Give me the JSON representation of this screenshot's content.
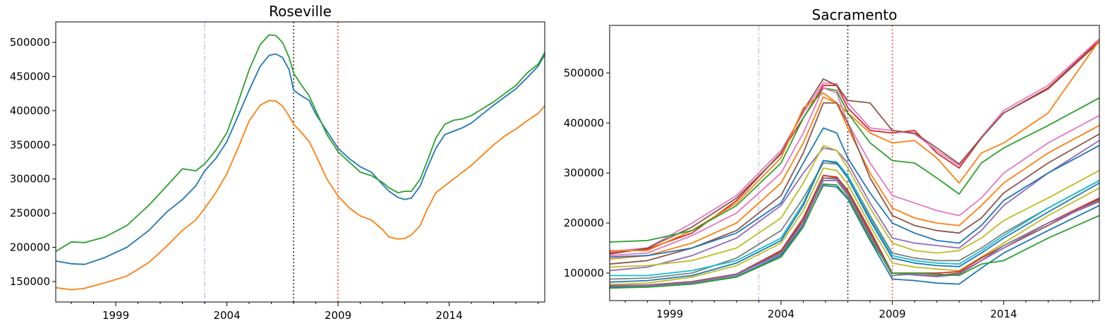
{
  "chart_data": [
    {
      "type": "line",
      "title": "Roseville",
      "xlabel": "",
      "ylabel": "",
      "xlim": [
        1996.3,
        2018.3
      ],
      "ylim": [
        120000,
        530000
      ],
      "x_ticks": [
        1999,
        2004,
        2009,
        2014
      ],
      "y_ticks": [
        150000,
        200000,
        250000,
        300000,
        350000,
        400000,
        450000,
        500000
      ],
      "grid": false,
      "vlines": [
        {
          "x": 2003.0,
          "color": "#c9c9f0",
          "style": "dashdot"
        },
        {
          "x": 2007.0,
          "color": "#333333",
          "style": "dotted"
        },
        {
          "x": 2009.0,
          "color": "#ff4a3d",
          "style": "dotted"
        }
      ],
      "series": [
        {
          "color": "#1f77b4",
          "x": [
            1996.3,
            1997,
            1997.6,
            1998.5,
            1999.5,
            2000.5,
            2001.3,
            2002,
            2002.6,
            2003,
            2003.5,
            2004,
            2004.5,
            2005,
            2005.5,
            2005.9,
            2006.2,
            2006.5,
            2006.8,
            2007,
            2007.3,
            2007.7,
            2008,
            2008.5,
            2009,
            2009.5,
            2010,
            2010.5,
            2011,
            2011.3,
            2011.7,
            2012,
            2012.3,
            2012.7,
            2013,
            2013.4,
            2013.8,
            2014.2,
            2014.6,
            2015,
            2015.5,
            2016,
            2016.5,
            2017,
            2017.5,
            2018,
            2018.3
          ],
          "y": [
            180000,
            176000,
            175000,
            185000,
            200000,
            225000,
            252000,
            270000,
            290000,
            312000,
            330000,
            355000,
            392000,
            430000,
            465000,
            481000,
            483000,
            478000,
            460000,
            430000,
            423000,
            415000,
            395000,
            370000,
            345000,
            330000,
            318000,
            310000,
            292000,
            282000,
            273000,
            270000,
            272000,
            290000,
            315000,
            345000,
            365000,
            370000,
            375000,
            382000,
            395000,
            408000,
            420000,
            432000,
            448000,
            465000,
            482000
          ]
        },
        {
          "color": "#ff7f0e",
          "x": [
            1996.3,
            1997,
            1997.6,
            1998.5,
            1999.5,
            2000.5,
            2001.3,
            2002,
            2002.6,
            2003,
            2003.5,
            2004,
            2004.5,
            2005,
            2005.5,
            2005.9,
            2006.2,
            2006.5,
            2006.8,
            2007,
            2007.3,
            2007.7,
            2008,
            2008.5,
            2009,
            2009.5,
            2010,
            2010.5,
            2011,
            2011.3,
            2011.7,
            2012,
            2012.3,
            2012.7,
            2013,
            2013.4,
            2013.8,
            2014.2,
            2014.6,
            2015,
            2015.5,
            2016,
            2016.5,
            2017,
            2017.5,
            2018,
            2018.3
          ],
          "y": [
            141000,
            138000,
            140000,
            148000,
            158000,
            178000,
            202000,
            225000,
            240000,
            257000,
            280000,
            308000,
            345000,
            385000,
            408000,
            415000,
            414000,
            407000,
            392000,
            380000,
            370000,
            355000,
            335000,
            300000,
            275000,
            258000,
            246000,
            240000,
            226000,
            215000,
            212000,
            213000,
            218000,
            232000,
            255000,
            280000,
            290000,
            300000,
            310000,
            320000,
            335000,
            350000,
            363000,
            373000,
            385000,
            396000,
            407000
          ]
        },
        {
          "color": "#2ca02c",
          "x": [
            1996.3,
            1997,
            1997.6,
            1998.5,
            1999.5,
            2000.5,
            2001.3,
            2002,
            2002.6,
            2003,
            2003.5,
            2004,
            2004.5,
            2005,
            2005.5,
            2005.9,
            2006.2,
            2006.5,
            2006.8,
            2007,
            2007.3,
            2007.7,
            2008,
            2008.5,
            2009,
            2009.5,
            2010,
            2010.5,
            2011,
            2011.3,
            2011.7,
            2012,
            2012.3,
            2012.7,
            2013,
            2013.4,
            2013.8,
            2014.2,
            2014.6,
            2015,
            2015.5,
            2016,
            2016.5,
            2017,
            2017.5,
            2018,
            2018.3
          ],
          "y": [
            194000,
            208000,
            207000,
            215000,
            232000,
            262000,
            290000,
            315000,
            312000,
            322000,
            342000,
            368000,
            412000,
            460000,
            497000,
            511000,
            510000,
            500000,
            478000,
            455000,
            440000,
            422000,
            400000,
            365000,
            340000,
            325000,
            310000,
            305000,
            295000,
            287000,
            280000,
            282000,
            282000,
            300000,
            325000,
            360000,
            380000,
            386000,
            388000,
            393000,
            403000,
            413000,
            425000,
            437000,
            455000,
            468000,
            485000
          ]
        }
      ]
    },
    {
      "type": "line",
      "title": "Sacramento",
      "xlabel": "",
      "ylabel": "",
      "xlim": [
        1996.3,
        2018.3
      ],
      "ylim": [
        45000,
        595000
      ],
      "x_ticks": [
        1999,
        2004,
        2009,
        2014
      ],
      "y_ticks": [
        100000,
        200000,
        300000,
        400000,
        500000
      ],
      "grid": false,
      "vlines": [
        {
          "x": 2003.0,
          "color": "#c9c9f0",
          "style": "dashdot"
        },
        {
          "x": 2007.0,
          "color": "#333333",
          "style": "dotted"
        },
        {
          "x": 2009.0,
          "color": "#ff4a3d",
          "style": "dotted"
        }
      ],
      "x": [
        1996.3,
        1998,
        2000,
        2002,
        2004,
        2005,
        2005.9,
        2006.5,
        2007,
        2008,
        2009,
        2010,
        2011,
        2012,
        2013,
        2014,
        2016,
        2018.3
      ],
      "series": [
        {
          "color": "#d62728",
          "y": [
            140000,
            148000,
            180000,
            245000,
            340000,
            410000,
            475000,
            475000,
            430000,
            385000,
            380000,
            385000,
            340000,
            310000,
            370000,
            420000,
            470000,
            565000
          ]
        },
        {
          "color": "#e377c2",
          "y": [
            143000,
            150000,
            200000,
            255000,
            345000,
            420000,
            480000,
            478000,
            440000,
            390000,
            385000,
            378000,
            345000,
            315000,
            372000,
            425000,
            475000,
            568000
          ]
        },
        {
          "color": "#8c564b",
          "y": [
            138000,
            150000,
            192000,
            250000,
            338000,
            425000,
            488000,
            475000,
            445000,
            440000,
            385000,
            380000,
            350000,
            318000,
            370000,
            420000,
            468000,
            562000
          ]
        },
        {
          "color": "#ff7f0e",
          "y": [
            145000,
            145000,
            185000,
            240000,
            330000,
            430000,
            460000,
            440000,
            420000,
            380000,
            360000,
            365000,
            330000,
            280000,
            340000,
            360000,
            420000,
            565000
          ]
        },
        {
          "color": "#2ca02c",
          "y": [
            162000,
            165000,
            185000,
            235000,
            320000,
            410000,
            470000,
            465000,
            420000,
            360000,
            325000,
            320000,
            290000,
            258000,
            320000,
            350000,
            395000,
            450000
          ]
        },
        {
          "color": "#e377c2",
          "y": [
            135000,
            140000,
            175000,
            220000,
            300000,
            380000,
            470000,
            460000,
            400000,
            320000,
            255000,
            240000,
            225000,
            215000,
            250000,
            300000,
            360000,
            415000
          ]
        },
        {
          "color": "#ff7f0e",
          "y": [
            128000,
            135000,
            160000,
            200000,
            280000,
            360000,
            452000,
            440000,
            390000,
            300000,
            230000,
            210000,
            200000,
            195000,
            235000,
            280000,
            340000,
            395000
          ]
        },
        {
          "color": "#8c564b",
          "y": [
            118000,
            125000,
            150000,
            185000,
            255000,
            340000,
            440000,
            440000,
            400000,
            290000,
            215000,
            195000,
            185000,
            180000,
            210000,
            260000,
            320000,
            378000
          ]
        },
        {
          "color": "#9467bd",
          "y": [
            105000,
            112000,
            135000,
            170000,
            235000,
            300000,
            350000,
            345000,
            320000,
            240000,
            170000,
            160000,
            155000,
            150000,
            185000,
            235000,
            300000,
            365000
          ]
        },
        {
          "color": "#1f77b4",
          "y": [
            132000,
            135000,
            150000,
            180000,
            240000,
            320000,
            390000,
            380000,
            330000,
            260000,
            200000,
            180000,
            165000,
            160000,
            195000,
            245000,
            300000,
            355000
          ]
        },
        {
          "color": "#bcbd22",
          "y": [
            112000,
            115000,
            125000,
            150000,
            210000,
            280000,
            355000,
            345000,
            310000,
            230000,
            160000,
            145000,
            140000,
            145000,
            170000,
            205000,
            250000,
            305000
          ]
        },
        {
          "color": "#7f7f7f",
          "y": [
            88000,
            90000,
            100000,
            130000,
            185000,
            250000,
            320000,
            318000,
            295000,
            215000,
            140000,
            130000,
            125000,
            125000,
            150000,
            180000,
            230000,
            285000
          ]
        },
        {
          "color": "#17becf",
          "y": [
            95000,
            95000,
            105000,
            125000,
            170000,
            240000,
            325000,
            322000,
            295000,
            210000,
            135000,
            125000,
            120000,
            118000,
            145000,
            175000,
            230000,
            285000
          ]
        },
        {
          "color": "#1f77b4",
          "y": [
            82000,
            85000,
            95000,
            120000,
            165000,
            235000,
            325000,
            320000,
            290000,
            205000,
            130000,
            120000,
            115000,
            113000,
            140000,
            170000,
            222000,
            280000
          ]
        },
        {
          "color": "#bcbd22",
          "y": [
            77000,
            80000,
            92000,
            115000,
            160000,
            225000,
            310000,
            305000,
            278000,
            195000,
            120000,
            112000,
            108000,
            105000,
            132000,
            160000,
            215000,
            270000
          ]
        },
        {
          "color": "#d62728",
          "y": [
            75000,
            76000,
            83000,
            98000,
            145000,
            210000,
            295000,
            292000,
            265000,
            185000,
            100000,
            100000,
            100000,
            103000,
            130000,
            155000,
            200000,
            250000
          ]
        },
        {
          "color": "#8c564b",
          "y": [
            74000,
            76000,
            83000,
            98000,
            143000,
            205000,
            290000,
            290000,
            262000,
            180000,
            100000,
            97000,
            95000,
            100000,
            125000,
            150000,
            195000,
            248000
          ]
        },
        {
          "color": "#7f7f7f",
          "y": [
            73000,
            74000,
            80000,
            96000,
            140000,
            200000,
            290000,
            288000,
            258000,
            175000,
            95000,
            98000,
            93000,
            98000,
            125000,
            155000,
            200000,
            245000
          ]
        },
        {
          "color": "#9467bd",
          "y": [
            74000,
            75000,
            81000,
            97000,
            138000,
            200000,
            285000,
            285000,
            255000,
            172000,
            100000,
            96000,
            93000,
            97000,
            125000,
            150000,
            200000,
            243000
          ]
        },
        {
          "color": "#1f77b4",
          "y": [
            72000,
            72000,
            78000,
            93000,
            135000,
            195000,
            275000,
            272000,
            248000,
            165000,
            88000,
            85000,
            80000,
            78000,
            110000,
            140000,
            185000,
            235000
          ]
        },
        {
          "color": "#2ca02c",
          "y": [
            70000,
            72000,
            78000,
            92000,
            132000,
            192000,
            278000,
            276000,
            250000,
            168000,
            100000,
            100000,
            98000,
            95000,
            118000,
            125000,
            170000,
            215000
          ]
        }
      ]
    }
  ]
}
